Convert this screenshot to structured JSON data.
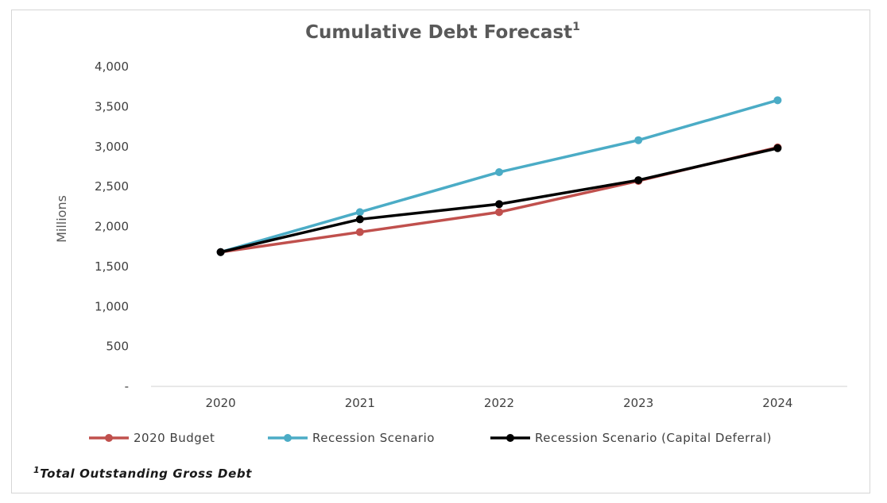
{
  "chart_data": {
    "type": "line",
    "title": "Cumulative Debt Forecast",
    "title_superscript": "1",
    "ylabel": "Millions",
    "xlabel": "",
    "categories": [
      "2020",
      "2021",
      "2022",
      "2023",
      "2024"
    ],
    "ylim": [
      0,
      4000
    ],
    "y_ticks": [
      0,
      500,
      1000,
      1500,
      2000,
      2500,
      3000,
      3500,
      4000
    ],
    "y_tick_labels": [
      "-",
      "500",
      "1,000",
      "1,500",
      "2,000",
      "2,500",
      "3,000",
      "3,500",
      "4,000"
    ],
    "grid": false,
    "legend_position": "bottom",
    "series": [
      {
        "name": "2020 Budget",
        "color": "#c0504d",
        "values": [
          1680,
          1930,
          2180,
          2570,
          2990
        ]
      },
      {
        "name": "Recession Scenario",
        "color": "#4bacc6",
        "values": [
          1680,
          2180,
          2680,
          3080,
          3580
        ]
      },
      {
        "name": "Recession Scenario (Capital Deferral)",
        "color": "#000000",
        "values": [
          1680,
          2090,
          2280,
          2580,
          2980
        ]
      }
    ],
    "footnote_marker": "1",
    "footnote": "Total Outstanding Gross Debt"
  }
}
